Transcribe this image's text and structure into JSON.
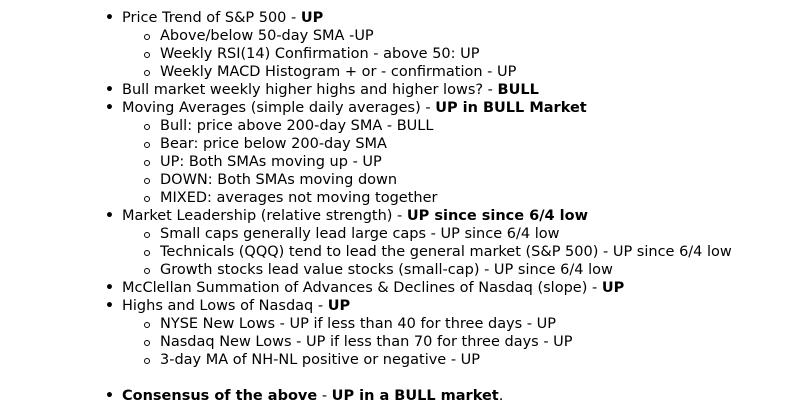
{
  "items": [
    {
      "text": "Price Trend of S&P 500 - ",
      "bold": "UP",
      "tail": "",
      "sub": [
        "Above/below 50-day SMA -UP",
        "Weekly RSI(14) Confirmation - above 50: UP",
        "Weekly MACD Histogram + or - confirmation - UP"
      ]
    },
    {
      "text": "Bull market weekly higher highs and higher lows? - ",
      "bold": "BULL",
      "tail": "",
      "sub": []
    },
    {
      "text": "Moving Averages (simple daily averages) - ",
      "bold": "UP in BULL Market",
      "tail": "",
      "sub": [
        "Bull: price above 200-day SMA - BULL",
        "Bear: price below 200-day SMA",
        "UP: Both SMAs moving up - UP",
        "DOWN: Both SMAs moving down",
        "MIXED: averages not moving together"
      ]
    },
    {
      "text": "Market Leadership (relative strength) - ",
      "bold": "UP since since 6/4 low",
      "tail": "",
      "sub": [
        "Small caps generally lead large caps - UP since 6/4 low",
        "Technicals (QQQ) tend to lead the general market (S&P 500) - UP since 6/4 low",
        "Growth stocks lead value stocks (small-cap) - UP since 6/4 low"
      ]
    },
    {
      "text": "McClellan Summation of Advances & Declines of Nasdaq (slope) - ",
      "bold": "UP",
      "tail": "",
      "sub": []
    },
    {
      "text": "Highs and Lows of Nasdaq - ",
      "bold": "UP",
      "tail": "",
      "sub": [
        "NYSE New Lows - UP if less than 40 for three days - UP",
        "Nasdaq New Lows - UP if less than 70 for three days - UP",
        "3-day MA of NH-NL positive or negative - UP"
      ]
    }
  ],
  "consensus": {
    "label": "Consensus of the above",
    "separator": " - ",
    "value": "UP in a BULL market",
    "end": "."
  }
}
